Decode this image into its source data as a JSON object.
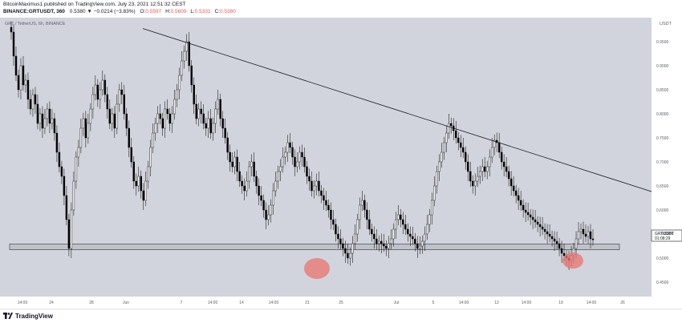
{
  "header": {
    "line1": "BitcoinMaximus1 published on TradingView.com, July 23, 2021 12:51:32 CEST",
    "symbol": "BINANCE:GRTUSDT, 360",
    "change": "0.5380 ▼ −0.0214 (−3.83%)",
    "open_label": "O:",
    "open": "0.5597",
    "high_label": "H:",
    "high": "0.5609",
    "low_label": "L:",
    "low": "0.5331",
    "close_label": "C:",
    "close": "0.5380"
  },
  "chart_legend": "GRT / TetherUS, 6h, BINANCE",
  "price_axis": {
    "currency": "USDT",
    "ticks": [
      "0.9500",
      "0.9000",
      "0.8500",
      "0.8000",
      "0.7500",
      "0.7000",
      "0.6500",
      "0.6000",
      "0.5500",
      "0.5000",
      "0.4500"
    ]
  },
  "price_label": {
    "symbol": "GRTUSDT",
    "price": "0.5380",
    "countdown": "01:08:29"
  },
  "time_axis": {
    "ticks": [
      "14:00",
      "24",
      "28",
      "Jun",
      "7",
      "14:00",
      "14",
      "14:00",
      "21",
      "25",
      "Jul",
      "5",
      "14:00",
      "12",
      "14:00",
      "19",
      "14:00",
      "26"
    ]
  },
  "footer": {
    "brand": "TradingView"
  },
  "colors": {
    "chart_bg": "#d1d4dc",
    "candle": "#000000",
    "support_fill": "#bfc2c9",
    "highlight": "#e8746f",
    "trendline": "#131722"
  },
  "chart_data": {
    "type": "candlestick",
    "ylim": [
      0.42,
      1.0
    ],
    "support_zone": [
      0.5173,
      0.5293
    ],
    "trendline": [
      {
        "x": "May 31",
        "y": 0.9773
      },
      {
        "x": "Jul 25",
        "y": 0.6383
      }
    ],
    "highlight_lows": [
      0.4784,
      0.4947
    ],
    "closes": [
      0.97,
      0.92,
      0.88,
      0.85,
      0.9,
      0.86,
      0.87,
      0.83,
      0.81,
      0.84,
      0.82,
      0.78,
      0.8,
      0.77,
      0.79,
      0.81,
      0.78,
      0.79,
      0.76,
      0.72,
      0.69,
      0.67,
      0.63,
      0.58,
      0.52,
      0.6,
      0.66,
      0.71,
      0.73,
      0.77,
      0.79,
      0.75,
      0.78,
      0.81,
      0.84,
      0.86,
      0.83,
      0.85,
      0.87,
      0.84,
      0.81,
      0.78,
      0.8,
      0.77,
      0.82,
      0.85,
      0.84,
      0.8,
      0.77,
      0.73,
      0.7,
      0.66,
      0.65,
      0.67,
      0.64,
      0.62,
      0.66,
      0.69,
      0.73,
      0.76,
      0.78,
      0.8,
      0.79,
      0.77,
      0.81,
      0.8,
      0.78,
      0.8,
      0.83,
      0.85,
      0.88,
      0.91,
      0.93,
      0.95,
      0.9,
      0.86,
      0.82,
      0.79,
      0.81,
      0.8,
      0.78,
      0.77,
      0.79,
      0.76,
      0.78,
      0.81,
      0.83,
      0.79,
      0.77,
      0.75,
      0.72,
      0.7,
      0.69,
      0.71,
      0.68,
      0.66,
      0.65,
      0.64,
      0.66,
      0.69,
      0.7,
      0.67,
      0.65,
      0.63,
      0.62,
      0.6,
      0.58,
      0.59,
      0.61,
      0.64,
      0.66,
      0.68,
      0.69,
      0.71,
      0.72,
      0.74,
      0.73,
      0.71,
      0.69,
      0.7,
      0.72,
      0.71,
      0.69,
      0.67,
      0.66,
      0.64,
      0.65,
      0.66,
      0.64,
      0.63,
      0.62,
      0.61,
      0.6,
      0.58,
      0.57,
      0.55,
      0.54,
      0.53,
      0.52,
      0.51,
      0.5,
      0.51,
      0.53,
      0.55,
      0.58,
      0.61,
      0.62,
      0.6,
      0.58,
      0.56,
      0.55,
      0.54,
      0.53,
      0.535,
      0.53,
      0.525,
      0.52,
      0.53,
      0.54,
      0.56,
      0.58,
      0.59,
      0.58,
      0.57,
      0.56,
      0.55,
      0.545,
      0.54,
      0.53,
      0.52,
      0.525,
      0.535,
      0.55,
      0.57,
      0.59,
      0.62,
      0.65,
      0.68,
      0.7,
      0.72,
      0.74,
      0.76,
      0.78,
      0.775,
      0.765,
      0.75,
      0.74,
      0.73,
      0.72,
      0.7,
      0.68,
      0.66,
      0.65,
      0.66,
      0.67,
      0.68,
      0.69,
      0.68,
      0.69,
      0.71,
      0.73,
      0.745,
      0.74,
      0.72,
      0.7,
      0.69,
      0.68,
      0.665,
      0.65,
      0.64,
      0.63,
      0.62,
      0.61,
      0.6,
      0.595,
      0.59,
      0.585,
      0.58,
      0.575,
      0.57,
      0.565,
      0.56,
      0.555,
      0.55,
      0.545,
      0.54,
      0.535,
      0.53,
      0.52,
      0.51,
      0.505,
      0.5,
      0.495,
      0.505,
      0.52,
      0.54,
      0.555,
      0.56,
      0.55,
      0.545,
      0.555,
      0.54,
      0.538
    ]
  }
}
